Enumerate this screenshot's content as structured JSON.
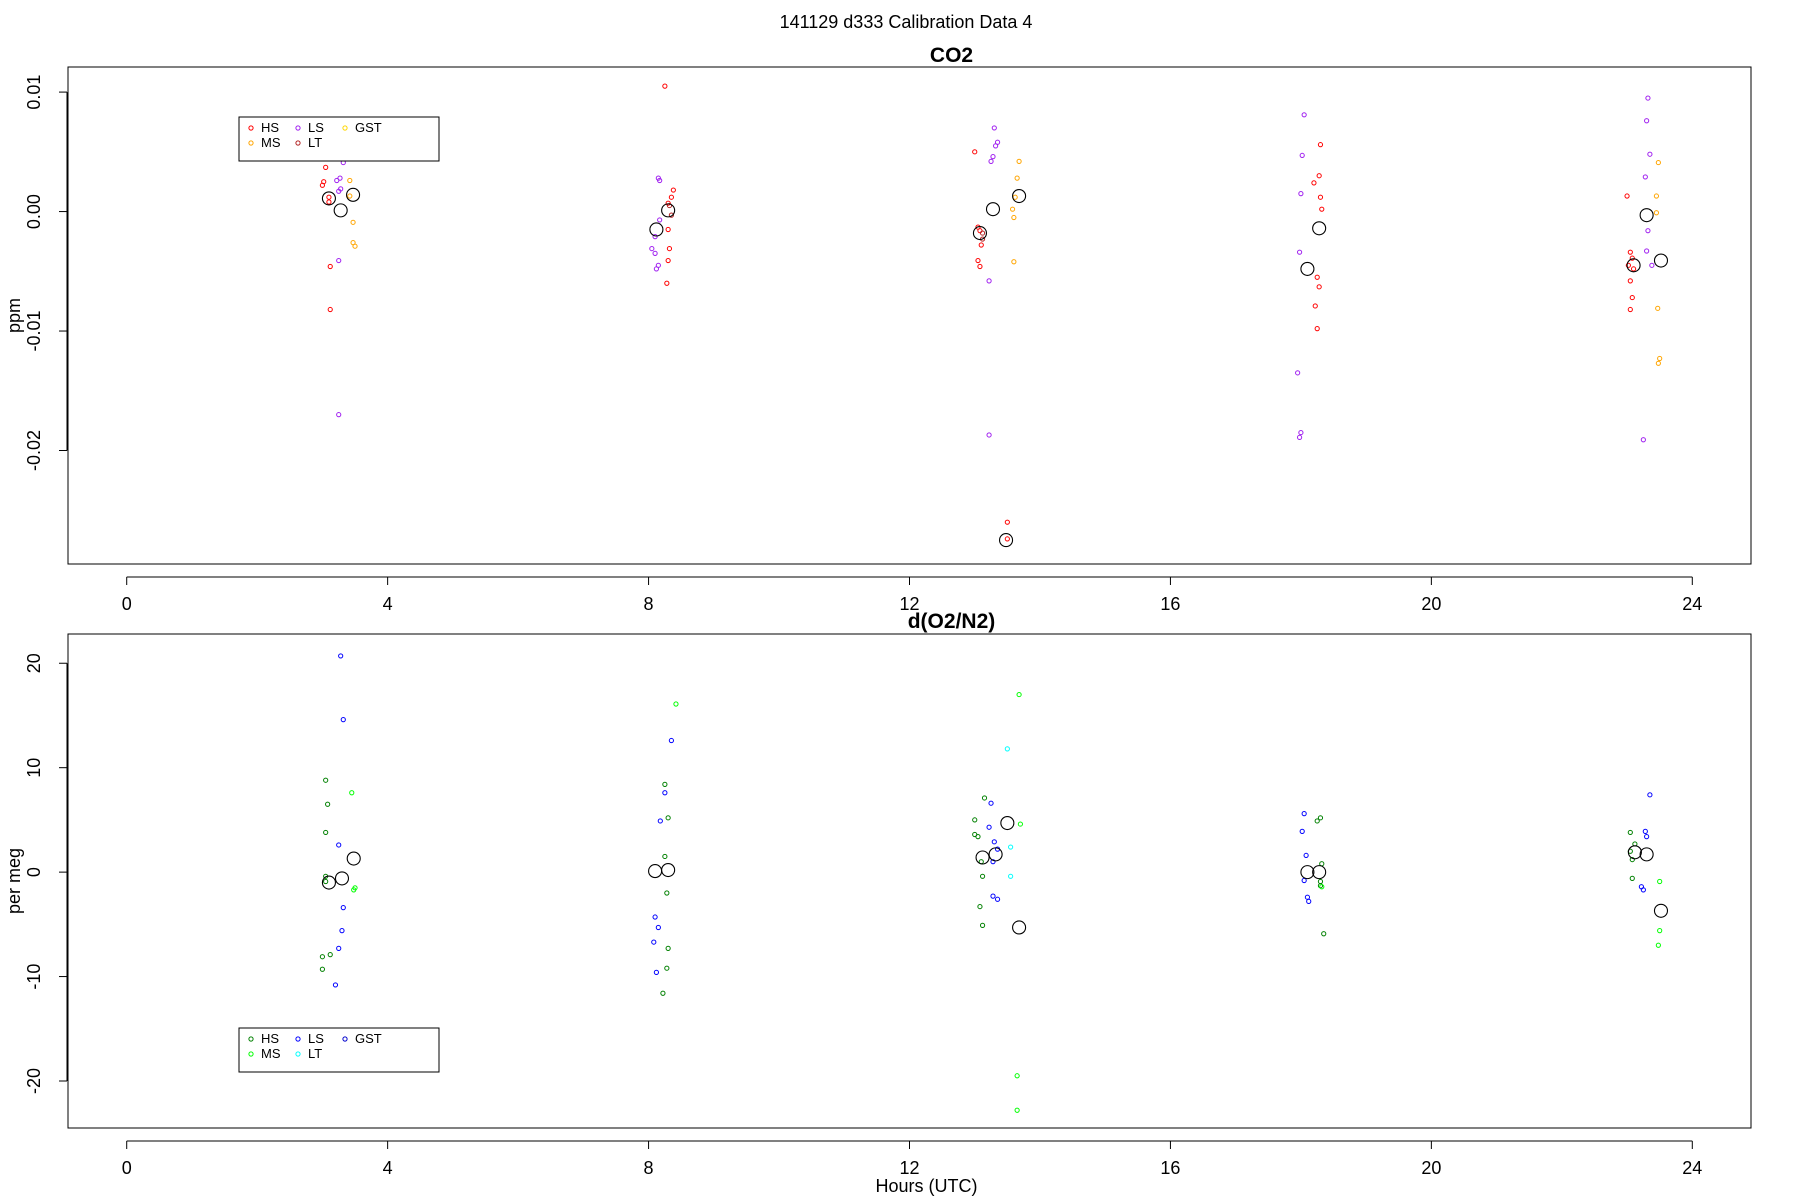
{
  "figure": {
    "title": "141129   d333   Calibration Data 4"
  },
  "chart_data": [
    {
      "type": "scatter",
      "title": "CO2",
      "xlabel": "",
      "ylabel": "ppm",
      "xlim": [
        -0.9,
        24.9
      ],
      "ylim": [
        -0.0295,
        0.0121
      ],
      "xticks": [
        0,
        4,
        8,
        12,
        16,
        20,
        24
      ],
      "yticks": [
        -0.02,
        -0.01,
        0.0,
        0.01
      ],
      "ytick_labels": [
        "-0.02",
        "-0.01",
        "0.00",
        "0.01"
      ],
      "grid": false,
      "legend": {
        "position": "top-left",
        "entries": [
          "HS",
          "MS",
          "LS",
          "LT",
          "GST"
        ]
      },
      "series": [
        {
          "name": "HS",
          "color": "#ff0000",
          "points": [
            [
              3.05,
              0.0037
            ],
            [
              3.02,
              0.0025
            ],
            [
              3.0,
              0.0022
            ],
            [
              3.1,
              0.0012
            ],
            [
              3.1,
              0.0008
            ],
            [
              3.12,
              -0.0046
            ],
            [
              3.12,
              -0.0082
            ],
            [
              8.25,
              0.0105
            ],
            [
              8.3,
              0.0007
            ],
            [
              8.35,
              0.0012
            ],
            [
              8.38,
              0.0018
            ],
            [
              8.3,
              -0.0015
            ],
            [
              8.32,
              -0.0031
            ],
            [
              8.3,
              -0.0041
            ],
            [
              8.28,
              -0.006
            ],
            [
              13.0,
              0.005
            ],
            [
              13.05,
              -0.0013
            ],
            [
              13.08,
              -0.0016
            ],
            [
              13.1,
              -0.0028
            ],
            [
              13.05,
              -0.0041
            ],
            [
              13.08,
              -0.0046
            ],
            [
              13.5,
              -0.026
            ],
            [
              13.5,
              -0.0274
            ],
            [
              18.3,
              0.0056
            ],
            [
              18.28,
              0.003
            ],
            [
              18.2,
              0.0024
            ],
            [
              18.3,
              0.0012
            ],
            [
              18.32,
              0.0002
            ],
            [
              18.25,
              -0.0055
            ],
            [
              18.28,
              -0.0063
            ],
            [
              18.22,
              -0.0079
            ],
            [
              18.25,
              -0.0098
            ],
            [
              23.0,
              0.0013
            ],
            [
              23.05,
              -0.0034
            ],
            [
              23.08,
              -0.0039
            ],
            [
              23.02,
              -0.0045
            ],
            [
              23.1,
              -0.0048
            ],
            [
              23.05,
              -0.0058
            ],
            [
              23.08,
              -0.0072
            ],
            [
              23.05,
              -0.0082
            ]
          ]
        },
        {
          "name": "MS",
          "color": "#ffa500",
          "points": [
            [
              3.42,
              0.0026
            ],
            [
              3.42,
              0.0013
            ],
            [
              3.47,
              -0.0009
            ],
            [
              3.47,
              -0.0026
            ],
            [
              3.5,
              -0.0029
            ],
            [
              13.68,
              0.0042
            ],
            [
              13.65,
              0.0028
            ],
            [
              13.62,
              0.0012
            ],
            [
              13.58,
              0.0002
            ],
            [
              13.6,
              -0.0005
            ],
            [
              13.6,
              -0.0042
            ],
            [
              23.48,
              0.0041
            ],
            [
              23.45,
              0.0013
            ],
            [
              23.45,
              -0.0001
            ],
            [
              23.47,
              -0.0081
            ],
            [
              23.5,
              -0.0123
            ],
            [
              23.48,
              -0.0127
            ]
          ]
        },
        {
          "name": "LS",
          "color": "#a020f0",
          "points": [
            [
              3.32,
              0.0041
            ],
            [
              3.27,
              0.0028
            ],
            [
              3.22,
              0.0026
            ],
            [
              3.28,
              0.0019
            ],
            [
              3.25,
              0.0017
            ],
            [
              3.25,
              -0.0041
            ],
            [
              3.25,
              -0.017
            ],
            [
              8.15,
              0.0028
            ],
            [
              8.17,
              0.0026
            ],
            [
              8.17,
              -0.0007
            ],
            [
              8.1,
              -0.0021
            ],
            [
              8.05,
              -0.0031
            ],
            [
              8.1,
              -0.0035
            ],
            [
              8.12,
              -0.0048
            ],
            [
              8.15,
              -0.0045
            ],
            [
              13.3,
              0.007
            ],
            [
              13.35,
              0.0058
            ],
            [
              13.32,
              0.0055
            ],
            [
              13.28,
              0.0046
            ],
            [
              13.25,
              0.0042
            ],
            [
              13.22,
              -0.0058
            ],
            [
              13.22,
              -0.0187
            ],
            [
              18.05,
              0.0081
            ],
            [
              18.02,
              0.0047
            ],
            [
              18.0,
              0.0015
            ],
            [
              17.98,
              -0.0034
            ],
            [
              17.95,
              -0.0135
            ],
            [
              18.0,
              -0.0185
            ],
            [
              17.98,
              -0.0189
            ],
            [
              23.32,
              0.0095
            ],
            [
              23.3,
              0.0076
            ],
            [
              23.35,
              0.0048
            ],
            [
              23.28,
              0.0029
            ],
            [
              23.3,
              -0.0033
            ],
            [
              23.32,
              -0.0016
            ],
            [
              23.38,
              -0.0045
            ],
            [
              23.25,
              -0.0191
            ]
          ]
        },
        {
          "name": "LT",
          "color": "#b22222",
          "points": [
            [
              8.32,
              0.0005
            ],
            [
              8.35,
              -0.0003
            ],
            [
              13.12,
              -0.0018
            ],
            [
              13.12,
              -0.0023
            ]
          ]
        },
        {
          "name": "GST",
          "color": "#ffd700",
          "points": []
        },
        {
          "name": "",
          "color": "#000000",
          "marker": "large-circle",
          "points": [
            [
              3.1,
              0.0011
            ],
            [
              3.28,
              0.0001
            ],
            [
              3.47,
              0.0014
            ],
            [
              8.12,
              -0.0015
            ],
            [
              8.3,
              0.0001
            ],
            [
              13.08,
              -0.0018
            ],
            [
              13.28,
              0.0002
            ],
            [
              13.48,
              -0.0275
            ],
            [
              13.68,
              0.0013
            ],
            [
              18.1,
              -0.0048
            ],
            [
              18.28,
              -0.0014
            ],
            [
              23.1,
              -0.0045
            ],
            [
              23.3,
              -0.0003
            ],
            [
              23.52,
              -0.0041
            ]
          ]
        }
      ]
    },
    {
      "type": "scatter",
      "title": "d(O2/N2)",
      "xlabel": "Hours (UTC)",
      "ylabel": "per meg",
      "xlim": [
        -0.9,
        24.9
      ],
      "ylim": [
        -24.5,
        22.8
      ],
      "xticks": [
        0,
        4,
        8,
        12,
        16,
        20,
        24
      ],
      "yticks": [
        -20,
        -10,
        0,
        10,
        20
      ],
      "ytick_labels": [
        "-20",
        "-10",
        "0",
        "10",
        "20"
      ],
      "grid": false,
      "legend": {
        "position": "bottom-left",
        "entries": [
          "HS",
          "MS",
          "LS",
          "LT",
          "GST"
        ]
      },
      "series": [
        {
          "name": "HS",
          "color": "#008000",
          "points": [
            [
              3.05,
              8.8
            ],
            [
              3.08,
              6.5
            ],
            [
              3.05,
              3.8
            ],
            [
              3.05,
              -0.4
            ],
            [
              3.05,
              -0.9
            ],
            [
              3.12,
              -7.9
            ],
            [
              3.0,
              -8.1
            ],
            [
              3.0,
              -9.3
            ],
            [
              8.25,
              8.4
            ],
            [
              8.3,
              5.2
            ],
            [
              8.25,
              1.5
            ],
            [
              8.28,
              -2.0
            ],
            [
              8.3,
              -7.3
            ],
            [
              8.28,
              -9.2
            ],
            [
              8.22,
              -11.6
            ],
            [
              13.15,
              7.1
            ],
            [
              13.0,
              5.0
            ],
            [
              13.0,
              3.6
            ],
            [
              13.05,
              3.4
            ],
            [
              13.1,
              1.0
            ],
            [
              13.12,
              -0.4
            ],
            [
              13.08,
              -3.3
            ],
            [
              13.12,
              -5.1
            ],
            [
              18.3,
              5.2
            ],
            [
              18.25,
              4.9
            ],
            [
              18.32,
              0.8
            ],
            [
              18.3,
              -0.9
            ],
            [
              18.3,
              -1.3
            ],
            [
              18.35,
              -5.9
            ],
            [
              23.05,
              3.8
            ],
            [
              23.12,
              2.7
            ],
            [
              23.05,
              2.0
            ],
            [
              23.08,
              1.2
            ],
            [
              23.08,
              -0.6
            ]
          ]
        },
        {
          "name": "MS",
          "color": "#00ff00",
          "points": [
            [
              3.45,
              7.6
            ],
            [
              3.5,
              -1.5
            ],
            [
              3.48,
              -1.7
            ],
            [
              8.42,
              16.1
            ],
            [
              13.68,
              17.0
            ],
            [
              13.7,
              4.6
            ],
            [
              13.65,
              -19.5
            ],
            [
              13.65,
              -22.8
            ],
            [
              18.32,
              -1.4
            ],
            [
              23.5,
              -0.9
            ],
            [
              23.5,
              -5.6
            ],
            [
              23.48,
              -7.0
            ]
          ]
        },
        {
          "name": "LS",
          "color": "#0000ff",
          "points": [
            [
              3.28,
              20.7
            ],
            [
              3.32,
              14.6
            ],
            [
              3.25,
              2.6
            ],
            [
              3.32,
              -3.4
            ],
            [
              3.3,
              -5.6
            ],
            [
              3.25,
              -7.3
            ],
            [
              3.2,
              -10.8
            ],
            [
              8.35,
              12.6
            ],
            [
              8.25,
              7.6
            ],
            [
              8.18,
              4.9
            ],
            [
              8.1,
              -4.3
            ],
            [
              8.15,
              -5.3
            ],
            [
              8.08,
              -6.7
            ],
            [
              8.12,
              -9.6
            ],
            [
              13.25,
              6.6
            ],
            [
              13.22,
              4.3
            ],
            [
              13.3,
              2.9
            ],
            [
              13.35,
              2.2
            ],
            [
              13.28,
              1.0
            ],
            [
              13.28,
              -2.3
            ],
            [
              13.35,
              -2.6
            ],
            [
              18.05,
              5.6
            ],
            [
              18.02,
              3.9
            ],
            [
              18.08,
              1.6
            ],
            [
              18.05,
              -0.8
            ],
            [
              18.1,
              -2.4
            ],
            [
              18.12,
              -2.8
            ],
            [
              23.35,
              7.4
            ],
            [
              23.28,
              3.9
            ],
            [
              23.3,
              3.4
            ],
            [
              23.22,
              -1.4
            ],
            [
              23.25,
              -1.7
            ]
          ]
        },
        {
          "name": "LT",
          "color": "#00ffff",
          "points": [
            [
              13.5,
              11.8
            ],
            [
              13.55,
              2.4
            ],
            [
              13.55,
              -0.4
            ]
          ]
        },
        {
          "name": "GST",
          "color": "#0000cd",
          "points": []
        },
        {
          "name": "",
          "color": "#000000",
          "marker": "large-circle",
          "points": [
            [
              3.1,
              -1.0
            ],
            [
              3.3,
              -0.6
            ],
            [
              3.48,
              1.3
            ],
            [
              8.1,
              0.1
            ],
            [
              8.3,
              0.2
            ],
            [
              13.12,
              1.4
            ],
            [
              13.32,
              1.7
            ],
            [
              13.5,
              4.7
            ],
            [
              13.68,
              -5.3
            ],
            [
              18.1,
              0.0
            ],
            [
              18.28,
              0.0
            ],
            [
              23.12,
              1.9
            ],
            [
              23.3,
              1.7
            ],
            [
              23.52,
              -3.7
            ]
          ]
        }
      ]
    }
  ]
}
